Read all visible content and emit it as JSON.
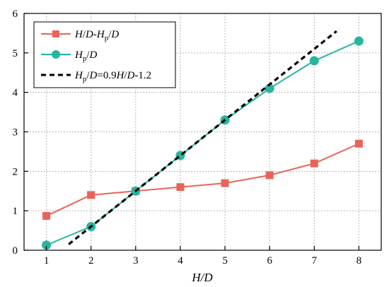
{
  "chart_data": {
    "type": "line",
    "xlabel": "H/D",
    "ylabel": "",
    "xlim": [
      0.5,
      8.5
    ],
    "ylim": [
      0,
      6
    ],
    "x_ticks": [
      1,
      2,
      3,
      4,
      5,
      6,
      7,
      8
    ],
    "y_ticks": [
      0,
      1,
      2,
      3,
      4,
      5,
      6
    ],
    "grid": true,
    "legend_position": "top-left",
    "series": [
      {
        "name": "H/D-Hp/D",
        "color": "#e8645a",
        "marker": "square",
        "line_style": "solid",
        "x": [
          1,
          2,
          3,
          4,
          5,
          6,
          7,
          8
        ],
        "y": [
          0.87,
          1.4,
          1.5,
          1.6,
          1.7,
          1.9,
          2.2,
          2.7
        ]
      },
      {
        "name": "Hp/D",
        "color": "#26b5a0",
        "marker": "circle",
        "line_style": "solid",
        "x": [
          1,
          2,
          3,
          4,
          5,
          6,
          7,
          8
        ],
        "y": [
          0.13,
          0.6,
          1.5,
          2.4,
          3.3,
          4.1,
          4.8,
          5.3
        ]
      },
      {
        "name": "Hp/D=0.9H/D-1.2",
        "color": "#000000",
        "marker": "none",
        "line_style": "dashed",
        "x": [
          1.5,
          7.5
        ],
        "y": [
          0.15,
          5.55
        ]
      }
    ]
  }
}
